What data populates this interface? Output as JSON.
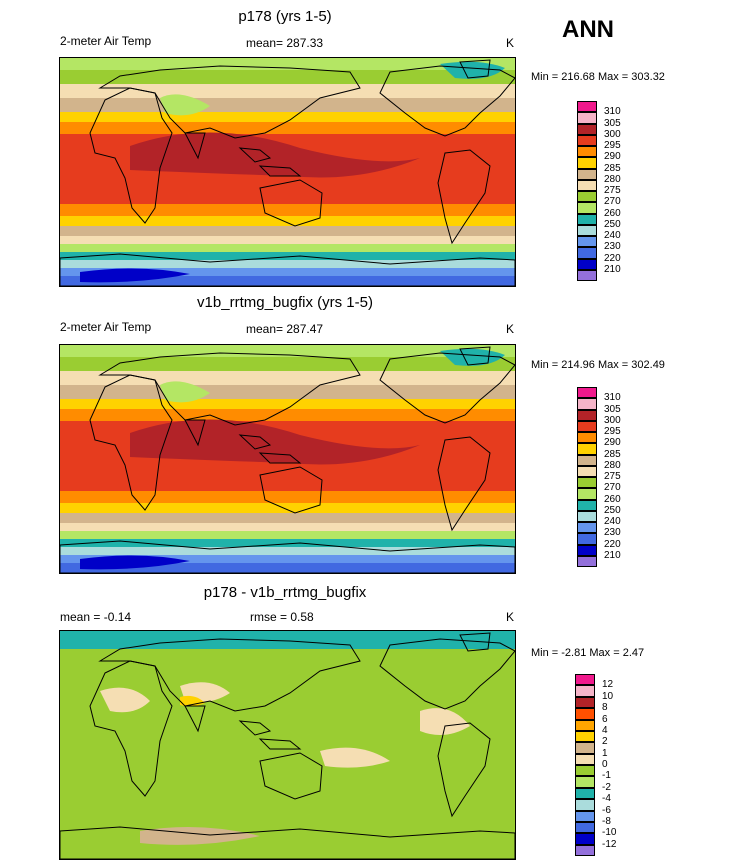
{
  "season": "ANN",
  "panels": [
    {
      "title": "p178 (yrs 1-5)",
      "left_label": "2-meter Air Temp",
      "mean_label": "mean= 287.33",
      "extra_label": "",
      "units": "K",
      "minmax": "Min = 216.68 Max = 303.32",
      "type": "field",
      "colorbar": {
        "labels": [
          "310",
          "305",
          "300",
          "295",
          "290",
          "285",
          "280",
          "275",
          "270",
          "260",
          "250",
          "240",
          "230",
          "220",
          "210"
        ],
        "colors": [
          "#f0198c",
          "#f5b4c8",
          "#b22328",
          "#e63c1e",
          "#ff8c00",
          "#ffd200",
          "#d2b48c",
          "#f5deb3",
          "#9acd32",
          "#b4e664",
          "#20b2aa",
          "#aadcdc",
          "#6495ed",
          "#4169e1",
          "#0000c8",
          "#9370db"
        ]
      }
    },
    {
      "title": "v1b_rrtmg_bugfix (yrs 1-5)",
      "left_label": "2-meter Air Temp",
      "mean_label": "mean= 287.47",
      "extra_label": "",
      "units": "K",
      "minmax": "Min = 214.96 Max = 302.49",
      "type": "field",
      "colorbar": {
        "labels": [
          "310",
          "305",
          "300",
          "295",
          "290",
          "285",
          "280",
          "275",
          "270",
          "260",
          "250",
          "240",
          "230",
          "220",
          "210"
        ],
        "colors": [
          "#f0198c",
          "#f5b4c8",
          "#b22328",
          "#e63c1e",
          "#ff8c00",
          "#ffd200",
          "#d2b48c",
          "#f5deb3",
          "#9acd32",
          "#b4e664",
          "#20b2aa",
          "#aadcdc",
          "#6495ed",
          "#4169e1",
          "#0000c8",
          "#9370db"
        ]
      }
    },
    {
      "title": "p178 - v1b_rrtmg_bugfix",
      "left_label": "mean =  -0.14",
      "mean_label": "rmse =   0.58",
      "extra_label": "",
      "units": "K",
      "minmax": "Min =  -2.81 Max =   2.47",
      "type": "diff",
      "colorbar": {
        "labels": [
          "12",
          "10",
          "8",
          "6",
          "4",
          "2",
          "1",
          "0",
          "-1",
          "-2",
          "-4",
          "-6",
          "-8",
          "-10",
          "-12"
        ],
        "colors": [
          "#f0198c",
          "#f5b4c8",
          "#b22328",
          "#ff5000",
          "#ffa500",
          "#ffd200",
          "#d2b48c",
          "#f5deb3",
          "#9acd32",
          "#b4e664",
          "#20b2aa",
          "#aadcdc",
          "#6495ed",
          "#4169e1",
          "#0000c8",
          "#9370db"
        ]
      }
    }
  ]
}
